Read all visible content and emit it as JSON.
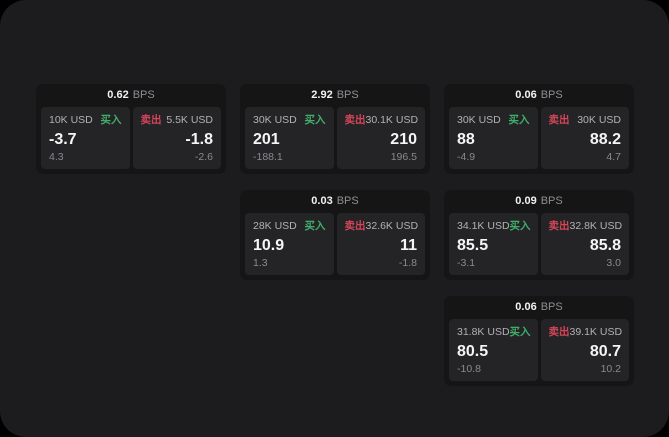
{
  "colors": {
    "outer_background": "#000000",
    "surface_background": "#1c1c1e",
    "card_background": "#151516",
    "panel_background": "#242427",
    "buy_green": "#3fae68",
    "sell_red": "#d44557",
    "primary_text": "#f5f5f6",
    "muted_text": "#8f8f93"
  },
  "labels": {
    "buy": "买入",
    "sell": "卖出",
    "bps_unit": "BPS"
  },
  "cards": [
    {
      "bps": "0.62",
      "buy": {
        "amount": "10K USD",
        "price": "-3.7",
        "change": "4.3"
      },
      "sell": {
        "amount": "5.5K USD",
        "price": "-1.8",
        "change": "-2.6"
      }
    },
    {
      "bps": "2.92",
      "buy": {
        "amount": "30K USD",
        "price": "201",
        "change": "-188.1"
      },
      "sell": {
        "amount": "30.1K USD",
        "price": "210",
        "change": "196.5"
      }
    },
    {
      "bps": "0.06",
      "buy": {
        "amount": "30K USD",
        "price": "88",
        "change": "-4.9"
      },
      "sell": {
        "amount": "30K USD",
        "price": "88.2",
        "change": "4.7"
      }
    },
    {
      "bps": "0.03",
      "buy": {
        "amount": "28K USD",
        "price": "10.9",
        "change": "1.3"
      },
      "sell": {
        "amount": "32.6K USD",
        "price": "11",
        "change": "-1.8"
      }
    },
    {
      "bps": "0.09",
      "buy": {
        "amount": "34.1K USD",
        "price": "85.5",
        "change": "-3.1"
      },
      "sell": {
        "amount": "32.8K USD",
        "price": "85.8",
        "change": "3.0"
      }
    },
    {
      "bps": "0.06",
      "buy": {
        "amount": "31.8K USD",
        "price": "80.5",
        "change": "-10.8"
      },
      "sell": {
        "amount": "39.1K USD",
        "price": "80.7",
        "change": "10.2"
      }
    }
  ]
}
